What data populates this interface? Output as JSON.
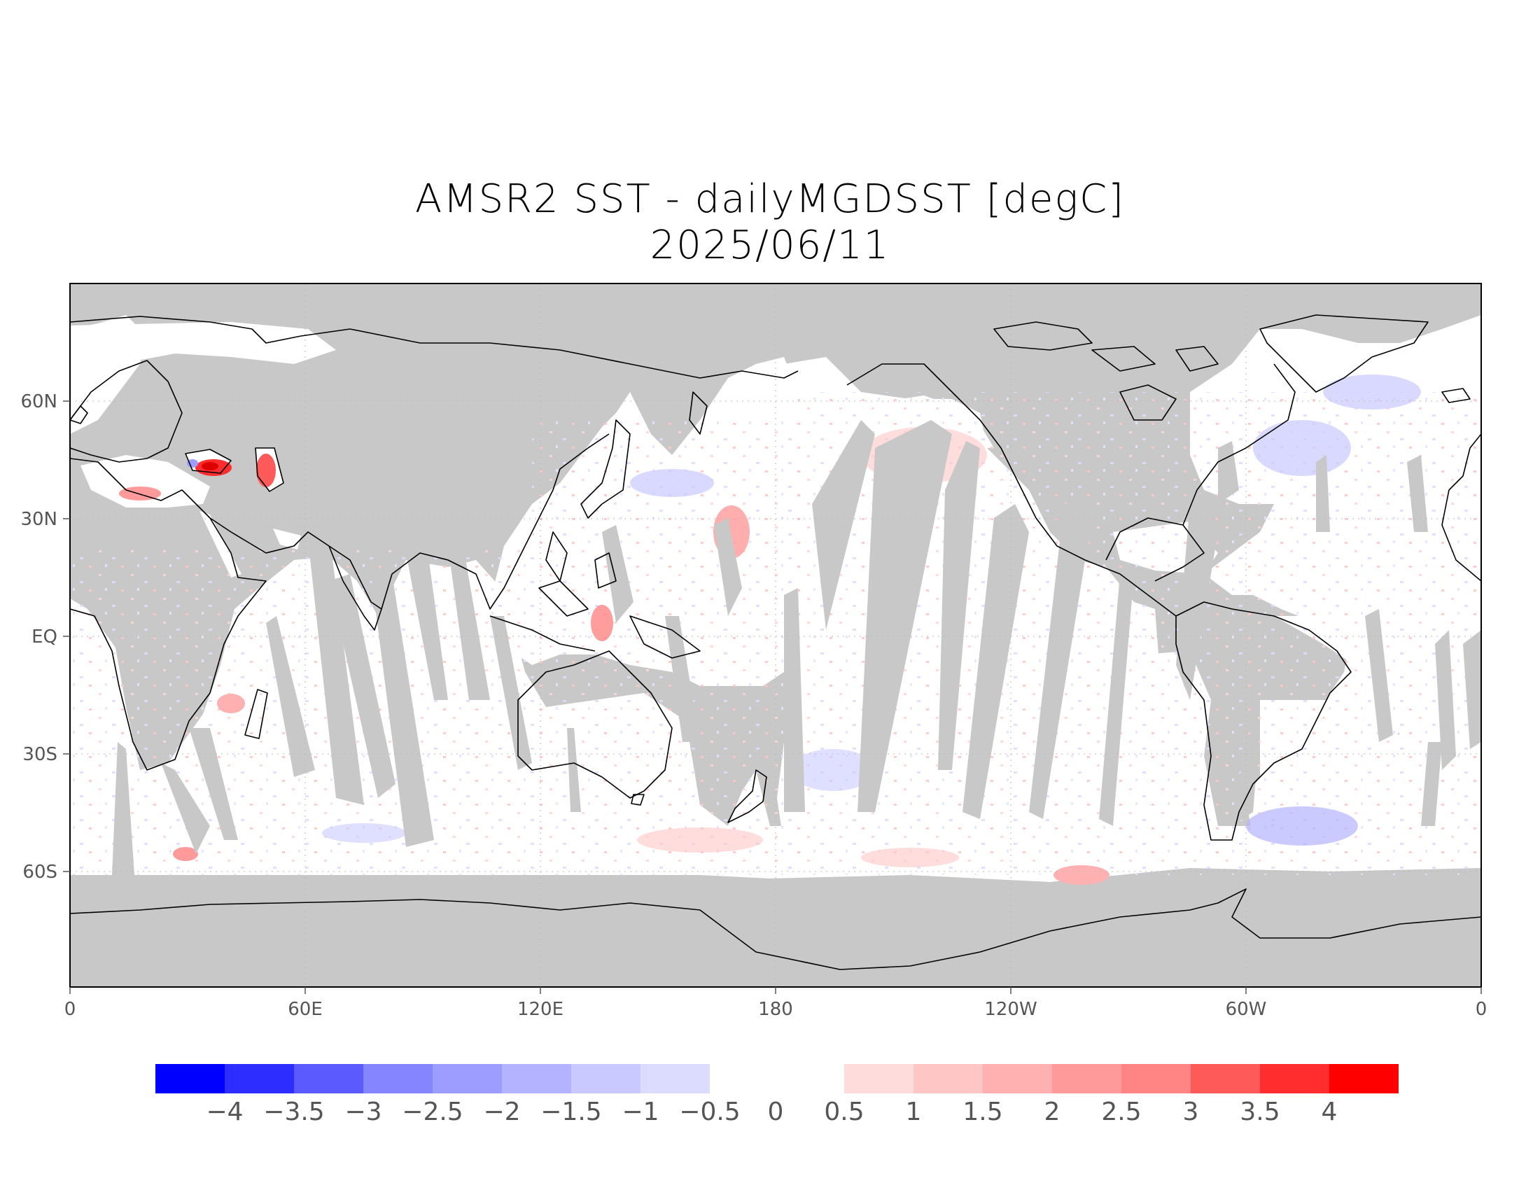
{
  "title": {
    "line1": "AMSR2 SST - dailyMGDSST [degC]",
    "line2": "2025/06/11"
  },
  "axes": {
    "x_ticks": [
      "0",
      "60E",
      "120E",
      "180",
      "120W",
      "60W",
      "0"
    ],
    "y_ticks": [
      "60N",
      "30N",
      "EQ",
      "30S",
      "60S"
    ]
  },
  "colorbar": {
    "negative": [
      {
        "label": "-4",
        "color": "#0000ff"
      },
      {
        "label": "-3.5",
        "color": "#2d2dff"
      },
      {
        "label": "-3",
        "color": "#5a5aff"
      },
      {
        "label": "-2.5",
        "color": "#8585ff"
      },
      {
        "label": "-2",
        "color": "#9d9dff"
      },
      {
        "label": "-1.5",
        "color": "#b3b3ff"
      },
      {
        "label": "-1",
        "color": "#c9c9ff"
      },
      {
        "label": "-0.5",
        "color": "#dcdcff"
      }
    ],
    "zero_label": "0",
    "positive": [
      {
        "label": "0.5",
        "color": "#ffdcdc"
      },
      {
        "label": "1",
        "color": "#ffc6c6"
      },
      {
        "label": "1.5",
        "color": "#ffb0b0"
      },
      {
        "label": "2",
        "color": "#ff9a9a"
      },
      {
        "label": "2.5",
        "color": "#ff8585"
      },
      {
        "label": "3",
        "color": "#ff5a5a"
      },
      {
        "label": "3.5",
        "color": "#ff2d2d"
      },
      {
        "label": "4",
        "color": "#ff0000"
      }
    ]
  },
  "colors": {
    "land": "#c8c8c8",
    "ocean_no_anomaly": "#ffffff",
    "coastline": "#000000"
  }
}
